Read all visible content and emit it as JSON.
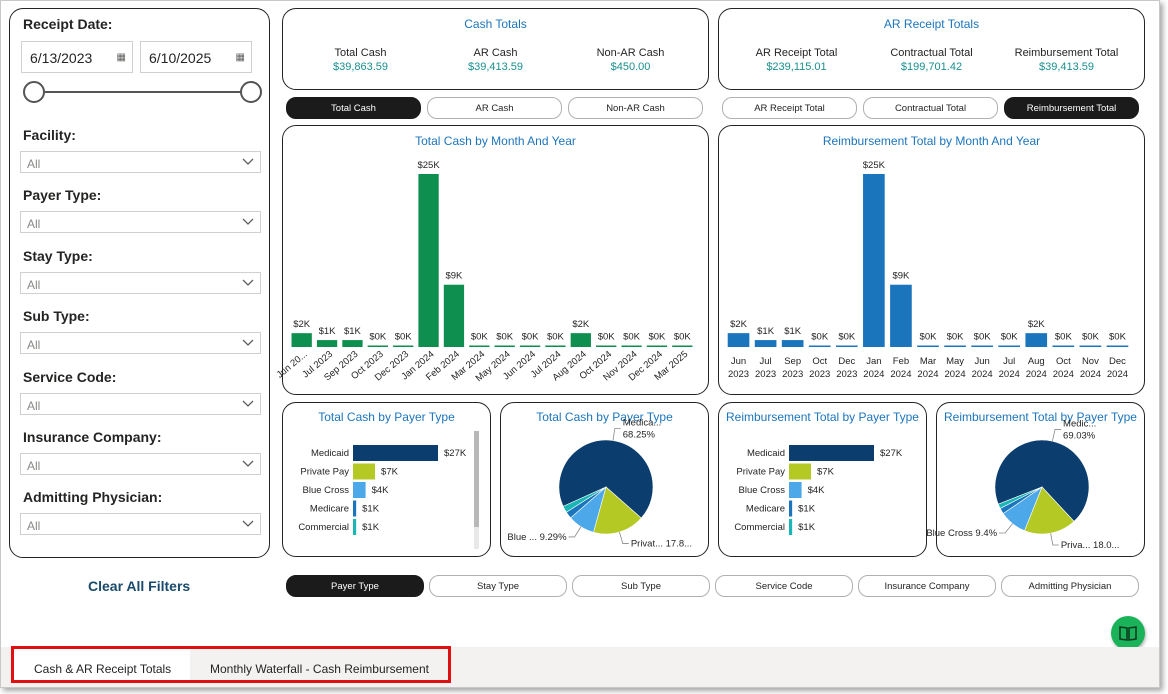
{
  "filters": {
    "receipt_date_label": "Receipt Date:",
    "start_date": "6/13/2023",
    "end_date": "6/10/2025",
    "items": [
      {
        "label": "Facility:",
        "value": "All"
      },
      {
        "label": "Payer Type:",
        "value": "All"
      },
      {
        "label": "Stay Type:",
        "value": "All"
      },
      {
        "label": "Sub Type:",
        "value": "All"
      },
      {
        "label": "Service Code:",
        "value": "All"
      },
      {
        "label": "Insurance Company:",
        "value": "All"
      },
      {
        "label": "Admitting Physician:",
        "value": "All"
      }
    ],
    "clear_all": "Clear All Filters"
  },
  "cash_totals": {
    "title": "Cash Totals",
    "kpis": [
      {
        "label": "Total Cash",
        "value": "$39,863.59"
      },
      {
        "label": "AR Cash",
        "value": "$39,413.59"
      },
      {
        "label": "Non-AR Cash",
        "value": "$450.00"
      }
    ]
  },
  "ar_totals": {
    "title": "AR Receipt Totals",
    "kpis": [
      {
        "label": "AR Receipt Total",
        "value": "$239,115.01"
      },
      {
        "label": "Contractual Total",
        "value": "$199,701.42"
      },
      {
        "label": "Reimbursement Total",
        "value": "$39,413.59"
      }
    ]
  },
  "cash_buttons": [
    {
      "label": "Total Cash",
      "active": true
    },
    {
      "label": "AR Cash",
      "active": false
    },
    {
      "label": "Non-AR Cash",
      "active": false
    }
  ],
  "ar_buttons": [
    {
      "label": "AR Receipt Total",
      "active": false
    },
    {
      "label": "Contractual Total",
      "active": false
    },
    {
      "label": "Reimbursement Total",
      "active": true
    }
  ],
  "bottom_buttons": [
    {
      "label": "Payer Type",
      "active": true
    },
    {
      "label": "Stay Type",
      "active": false
    },
    {
      "label": "Sub Type",
      "active": false
    },
    {
      "label": "Service Code",
      "active": false
    },
    {
      "label": "Insurance Company",
      "active": false
    },
    {
      "label": "Admitting Physician",
      "active": false
    }
  ],
  "tabs": [
    "Cash & AR Receipt Totals",
    "Monthly Waterfall - Cash Reimbursement"
  ],
  "colors": {
    "green": "#0e8f4f",
    "blue": "#1b75bc",
    "navy": "#0b3d6e",
    "lime": "#b5c924",
    "sky": "#4ca8e8",
    "teal": "#1ab5b5",
    "accent": "#1c75bc"
  },
  "icons": {
    "calendar": "calendar-icon",
    "chevron": "chevron-down-icon",
    "book": "book-icon"
  },
  "chart_data": [
    {
      "type": "bar",
      "title": "Total Cash by Month And Year",
      "categories": [
        "Jun 20...",
        "Jul 2023",
        "Sep 2023",
        "Oct 2023",
        "Dec 2023",
        "Jan 2024",
        "Feb 2024",
        "Mar 2024",
        "May 2024",
        "Jun 2024",
        "Jul 2024",
        "Aug 2024",
        "Oct 2024",
        "Nov 2024",
        "Dec 2024",
        "Mar 2025"
      ],
      "values": [
        2,
        1,
        1,
        0,
        0,
        25,
        9,
        0,
        0,
        0,
        0,
        2,
        0,
        0,
        0,
        0
      ],
      "data_labels": [
        "$2K",
        "$1K",
        "$1K",
        "$0K",
        "$0K",
        "$25K",
        "$9K",
        "$0K",
        "$0K",
        "$0K",
        "$0K",
        "$2K",
        "$0K",
        "$0K",
        "$0K",
        "$0K"
      ],
      "unit": "$K",
      "color": "#0e8f4f"
    },
    {
      "type": "bar",
      "title": "Reimbursement Total by Month And Year",
      "categories": [
        "Jun 2023",
        "Jul 2023",
        "Sep 2023",
        "Oct 2023",
        "Dec 2023",
        "Jan 2024",
        "Feb 2024",
        "Mar 2024",
        "May 2024",
        "Jun 2024",
        "Jul 2024",
        "Aug 2024",
        "Oct 2024",
        "Nov 2024",
        "Dec 2024"
      ],
      "values": [
        2,
        1,
        1,
        0,
        0,
        25,
        9,
        0,
        0,
        0,
        0,
        2,
        0,
        0,
        0
      ],
      "data_labels": [
        "$2K",
        "$1K",
        "$1K",
        "$0K",
        "$0K",
        "$25K",
        "$9K",
        "$0K",
        "$0K",
        "$0K",
        "$0K",
        "$2K",
        "$0K",
        "$0K",
        "$0K"
      ],
      "unit": "$K",
      "color": "#1b75bc"
    },
    {
      "type": "bar",
      "orientation": "horizontal",
      "title": "Total Cash by Payer Type",
      "categories": [
        "Medicaid",
        "Private Pay",
        "Blue Cross",
        "Medicare",
        "Commercial"
      ],
      "values": [
        27,
        7,
        4,
        1,
        1
      ],
      "data_labels": [
        "$27K",
        "$7K",
        "$4K",
        "$1K",
        "$1K"
      ],
      "colors": [
        "#0b3d6e",
        "#b5c924",
        "#4ca8e8",
        "#1b75bc",
        "#1ab5b5"
      ]
    },
    {
      "type": "pie",
      "title": "Total Cash by Payer Type",
      "slices": [
        {
          "name": "Medicaid",
          "value": 68.25,
          "color": "#0b3d6e"
        },
        {
          "name": "Private Pay",
          "value": 17.8,
          "color": "#b5c924"
        },
        {
          "name": "Blue Cross",
          "value": 9.29,
          "color": "#4ca8e8"
        },
        {
          "name": "Medicare",
          "value": 2.4,
          "color": "#1b75bc"
        },
        {
          "name": "Commercial",
          "value": 2.26,
          "color": "#1ab5b5"
        }
      ],
      "labels": [
        {
          "slice": "Blue Cross",
          "text": "Blue ... 9.29%"
        },
        {
          "slice": "Private Pay",
          "text": "Privat... 17.8..."
        },
        {
          "slice": "Medicaid",
          "text": "Medica... 68.25%"
        }
      ]
    },
    {
      "type": "bar",
      "orientation": "horizontal",
      "title": "Reimbursement Total by Payer Type",
      "categories": [
        "Medicaid",
        "Private Pay",
        "Blue Cross",
        "Medicare",
        "Commercial"
      ],
      "values": [
        27,
        7,
        4,
        1,
        1
      ],
      "data_labels": [
        "$27K",
        "$7K",
        "$4K",
        "$1K",
        "$1K"
      ],
      "colors": [
        "#0b3d6e",
        "#b5c924",
        "#4ca8e8",
        "#1b75bc",
        "#1ab5b5"
      ]
    },
    {
      "type": "pie",
      "title": "Reimbursement Total by Payer Type",
      "slices": [
        {
          "name": "Medicaid",
          "value": 69.03,
          "color": "#0b3d6e"
        },
        {
          "name": "Private Pay",
          "value": 18.0,
          "color": "#b5c924"
        },
        {
          "name": "Blue Cross",
          "value": 9.4,
          "color": "#4ca8e8"
        },
        {
          "name": "Medicare",
          "value": 2.0,
          "color": "#1b75bc"
        },
        {
          "name": "Commercial",
          "value": 1.57,
          "color": "#1ab5b5"
        }
      ],
      "labels": [
        {
          "slice": "Blue Cross",
          "text": "Blue Cross 9.4%"
        },
        {
          "slice": "Private Pay",
          "text": "Priva... 18.0..."
        },
        {
          "slice": "Medicaid",
          "text": "Medic... 69.03%"
        }
      ]
    }
  ]
}
